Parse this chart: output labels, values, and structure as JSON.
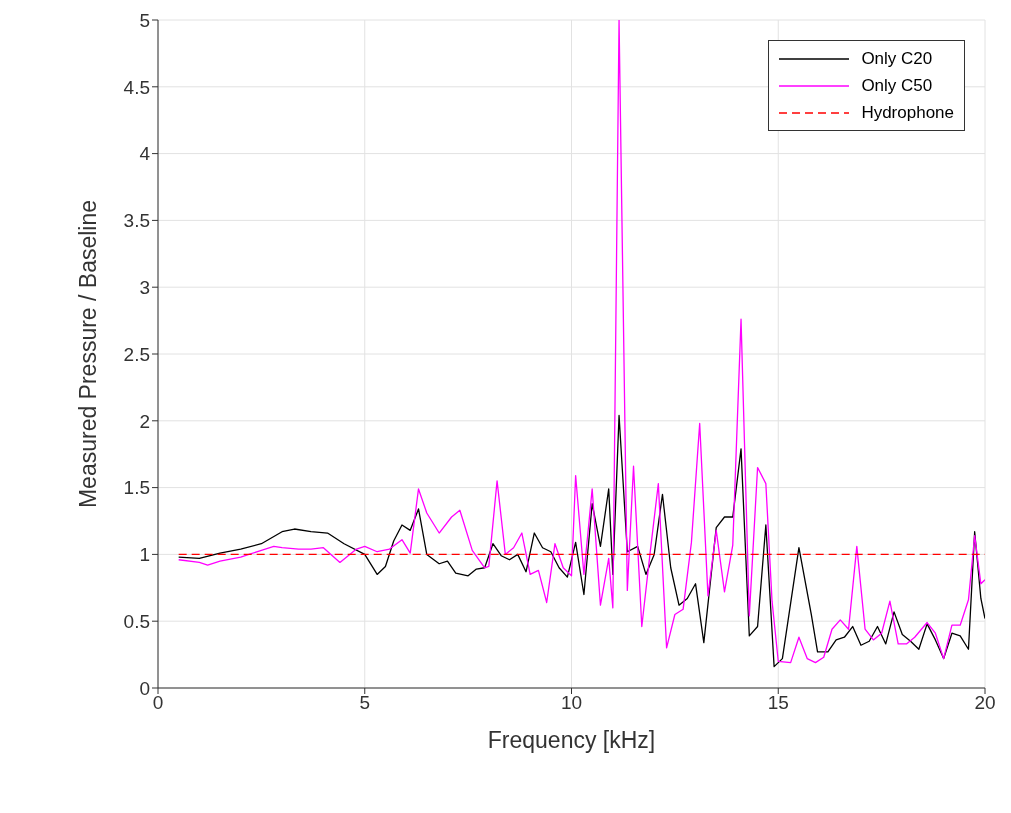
{
  "chart_data": {
    "type": "line",
    "xlabel": "Frequency [kHz]",
    "ylabel": "Measured Pressure / Baseline",
    "xlim": [
      0,
      20
    ],
    "xticks": [
      0,
      5,
      10,
      15,
      20
    ],
    "ylim": [
      0,
      5
    ],
    "yticks": [
      0,
      0.5,
      1,
      1.5,
      2,
      2.5,
      3,
      3.5,
      4,
      4.5,
      5
    ],
    "grid": true,
    "legend": "top right",
    "marker": "none",
    "series": [
      {
        "name": "Only C20",
        "color": "#000000",
        "line_style": "solid",
        "x": [
          0.5,
          1.0,
          1.5,
          2.0,
          2.5,
          3.0,
          3.3,
          3.7,
          4.1,
          4.5,
          5.0,
          5.3,
          5.5,
          5.7,
          5.9,
          6.1,
          6.3,
          6.5,
          6.8,
          7.0,
          7.2,
          7.5,
          7.7,
          7.9,
          8.1,
          8.3,
          8.5,
          8.7,
          8.9,
          9.1,
          9.3,
          9.5,
          9.7,
          9.9,
          10.1,
          10.3,
          10.5,
          10.7,
          10.9,
          11.0,
          11.15,
          11.35,
          11.6,
          11.8,
          12.0,
          12.2,
          12.4,
          12.6,
          12.8,
          13.0,
          13.2,
          13.5,
          13.7,
          13.9,
          14.1,
          14.3,
          14.5,
          14.7,
          14.9,
          15.1,
          15.5,
          15.8,
          15.95,
          16.2,
          16.4,
          16.6,
          16.8,
          17.0,
          17.2,
          17.4,
          17.6,
          17.8,
          18.0,
          18.2,
          18.4,
          18.6,
          18.8,
          19.0,
          19.2,
          19.4,
          19.6,
          19.75,
          19.9,
          20.0
        ],
        "values": [
          0.98,
          0.97,
          1.01,
          1.04,
          1.08,
          1.17,
          1.19,
          1.17,
          1.16,
          1.08,
          1.0,
          0.85,
          0.91,
          1.1,
          1.22,
          1.18,
          1.34,
          1.0,
          0.93,
          0.95,
          0.86,
          0.84,
          0.89,
          0.9,
          1.08,
          0.99,
          0.96,
          1.0,
          0.87,
          1.16,
          1.05,
          1.02,
          0.9,
          0.83,
          1.09,
          0.7,
          1.38,
          1.06,
          1.49,
          0.85,
          2.04,
          1.02,
          1.06,
          0.85,
          1.0,
          1.45,
          0.9,
          0.62,
          0.67,
          0.78,
          0.34,
          1.2,
          1.28,
          1.28,
          1.79,
          0.39,
          0.46,
          1.22,
          0.16,
          0.22,
          1.05,
          0.55,
          0.27,
          0.27,
          0.36,
          0.38,
          0.46,
          0.32,
          0.35,
          0.46,
          0.33,
          0.57,
          0.4,
          0.35,
          0.29,
          0.48,
          0.36,
          0.22,
          0.41,
          0.39,
          0.29,
          1.17,
          0.67,
          0.52
        ]
      },
      {
        "name": "Only C50",
        "color": "#ff00ff",
        "line_style": "solid",
        "x": [
          0.5,
          1.0,
          1.2,
          1.5,
          2.0,
          2.2,
          2.5,
          2.8,
          3.0,
          3.4,
          3.7,
          4.0,
          4.4,
          4.8,
          5.0,
          5.3,
          5.6,
          5.9,
          6.1,
          6.3,
          6.5,
          6.8,
          7.1,
          7.3,
          7.6,
          7.9,
          8.0,
          8.2,
          8.4,
          8.6,
          8.8,
          9.0,
          9.2,
          9.4,
          9.6,
          9.8,
          10.0,
          10.1,
          10.3,
          10.5,
          10.7,
          10.9,
          11.0,
          11.15,
          11.35,
          11.5,
          11.7,
          11.9,
          12.1,
          12.3,
          12.5,
          12.7,
          12.9,
          13.1,
          13.3,
          13.5,
          13.7,
          13.9,
          14.1,
          14.3,
          14.5,
          14.7,
          14.85,
          15.0,
          15.3,
          15.5,
          15.7,
          15.9,
          16.1,
          16.3,
          16.5,
          16.7,
          16.9,
          17.1,
          17.3,
          17.5,
          17.7,
          17.9,
          18.1,
          18.3,
          18.6,
          18.8,
          19.0,
          19.2,
          19.4,
          19.6,
          19.75,
          19.9,
          20.0
        ],
        "values": [
          0.96,
          0.94,
          0.92,
          0.95,
          0.98,
          1.0,
          1.03,
          1.06,
          1.05,
          1.04,
          1.04,
          1.05,
          0.94,
          1.04,
          1.06,
          1.02,
          1.04,
          1.11,
          1.01,
          1.49,
          1.31,
          1.16,
          1.28,
          1.33,
          1.03,
          0.9,
          0.91,
          1.55,
          1.0,
          1.05,
          1.16,
          0.85,
          0.88,
          0.64,
          1.08,
          0.9,
          0.84,
          1.59,
          0.85,
          1.49,
          0.62,
          0.97,
          0.6,
          5.0,
          0.73,
          1.66,
          0.46,
          1.01,
          1.53,
          0.3,
          0.55,
          0.59,
          1.09,
          1.98,
          0.69,
          1.18,
          0.72,
          1.07,
          2.76,
          0.54,
          1.65,
          1.53,
          0.65,
          0.2,
          0.19,
          0.38,
          0.22,
          0.19,
          0.23,
          0.44,
          0.51,
          0.44,
          1.06,
          0.44,
          0.36,
          0.41,
          0.65,
          0.33,
          0.33,
          0.38,
          0.49,
          0.41,
          0.22,
          0.47,
          0.47,
          0.66,
          1.14,
          0.78,
          0.81
        ]
      },
      {
        "name": "Hydrophone",
        "color": "#ff0000",
        "line_style": "dashed",
        "x": [
          0.5,
          20
        ],
        "values": [
          1,
          1
        ]
      }
    ]
  }
}
